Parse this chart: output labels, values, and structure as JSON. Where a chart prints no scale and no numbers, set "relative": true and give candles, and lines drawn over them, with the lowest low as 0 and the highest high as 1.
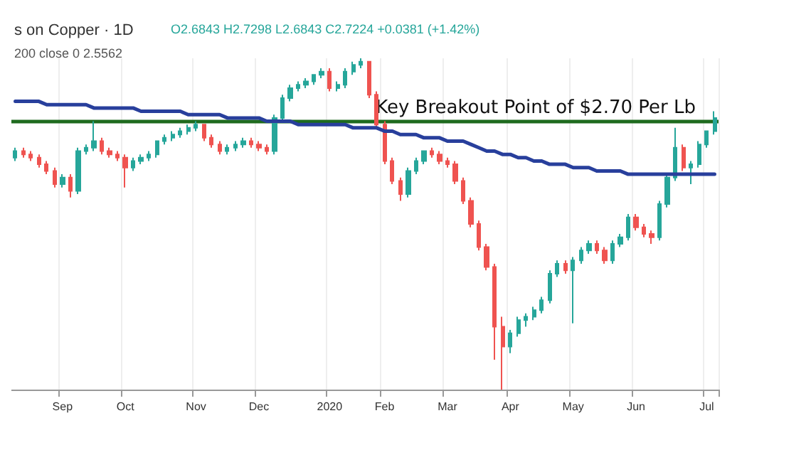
{
  "chart_data": {
    "type": "candlestick",
    "title": "s on Copper · 1D",
    "relative": true,
    "grid": "x",
    "tick_labels": "x",
    "annotations": [
      "O2.6843 H2.7298 L2.6843 C2.7224 +0.0381 (+1.42%)",
      "200 close 0 2.5562"
    ],
    "categories": [
      null,
      null,
      null,
      null,
      null,
      null,
      "Sep",
      null,
      null,
      null,
      null,
      null,
      null,
      null,
      "Oct",
      null,
      null,
      null,
      null,
      null,
      null,
      null,
      null,
      "Nov",
      null,
      null,
      null,
      null,
      null,
      null,
      null,
      "Dec",
      null,
      null,
      null,
      null,
      null,
      null,
      null,
      null,
      "2020",
      null,
      null,
      null,
      null,
      null,
      null,
      "Feb",
      null,
      null,
      null,
      null,
      null,
      null,
      null,
      "Mar",
      null,
      null,
      null,
      null,
      null,
      null,
      null,
      "Apr",
      null,
      null,
      null,
      null,
      null,
      null,
      null,
      "May",
      null,
      null,
      null,
      null,
      null,
      null,
      null,
      "Jun",
      null,
      null,
      null,
      null,
      null,
      null,
      null,
      null,
      "Jul",
      null
    ],
    "ref_lines": [
      {
        "axis": "y",
        "value": 0.81,
        "label": "Key Breakout Point of $2.70 Per Lb",
        "color": "#1e6b1e"
      }
    ],
    "series": [
      {
        "ohlc": [
          [
            0.7,
            0.73,
            0.69,
            0.72
          ],
          [
            0.72,
            0.73,
            0.7,
            0.71
          ],
          [
            0.71,
            0.72,
            0.69,
            0.7
          ],
          [
            0.7,
            0.71,
            0.67,
            0.68
          ],
          [
            0.68,
            0.69,
            0.65,
            0.66
          ],
          [
            0.66,
            0.67,
            0.61,
            0.62
          ],
          [
            0.62,
            0.65,
            0.61,
            0.64
          ],
          [
            0.64,
            0.65,
            0.58,
            0.6
          ],
          [
            0.6,
            0.73,
            0.59,
            0.72
          ],
          [
            0.72,
            0.74,
            0.71,
            0.73
          ],
          [
            0.73,
            0.81,
            0.72,
            0.75
          ],
          [
            0.75,
            0.76,
            0.71,
            0.72
          ],
          [
            0.72,
            0.73,
            0.7,
            0.71
          ],
          [
            0.71,
            0.72,
            0.69,
            0.7
          ],
          [
            0.7,
            0.71,
            0.61,
            0.67
          ],
          [
            0.67,
            0.7,
            0.66,
            0.69
          ],
          [
            0.69,
            0.71,
            0.68,
            0.7
          ],
          [
            0.7,
            0.72,
            0.69,
            0.71
          ],
          [
            0.71,
            0.75,
            0.7,
            0.75
          ],
          [
            0.75,
            0.77,
            0.74,
            0.76
          ],
          [
            0.76,
            0.78,
            0.75,
            0.77
          ],
          [
            0.77,
            0.79,
            0.76,
            0.78
          ],
          [
            0.78,
            0.8,
            0.77,
            0.79
          ],
          [
            0.79,
            0.81,
            0.78,
            0.8
          ],
          [
            0.8,
            0.8,
            0.75,
            0.76
          ],
          [
            0.76,
            0.77,
            0.73,
            0.74
          ],
          [
            0.74,
            0.75,
            0.71,
            0.72
          ],
          [
            0.72,
            0.74,
            0.71,
            0.73
          ],
          [
            0.73,
            0.75,
            0.72,
            0.74
          ],
          [
            0.74,
            0.76,
            0.73,
            0.75
          ],
          [
            0.75,
            0.76,
            0.73,
            0.74
          ],
          [
            0.74,
            0.75,
            0.72,
            0.73
          ],
          [
            0.73,
            0.74,
            0.71,
            0.72
          ],
          [
            0.72,
            0.83,
            0.71,
            0.82
          ],
          [
            0.82,
            0.89,
            0.81,
            0.88
          ],
          [
            0.88,
            0.92,
            0.87,
            0.91
          ],
          [
            0.91,
            0.93,
            0.9,
            0.92
          ],
          [
            0.92,
            0.94,
            0.91,
            0.93
          ],
          [
            0.93,
            0.95,
            0.92,
            0.95
          ],
          [
            0.95,
            0.97,
            0.94,
            0.96
          ],
          [
            0.96,
            0.97,
            0.9,
            0.91
          ],
          [
            0.91,
            0.93,
            0.9,
            0.92
          ],
          [
            0.92,
            0.97,
            0.91,
            0.96
          ],
          [
            0.96,
            0.99,
            0.95,
            0.98
          ],
          [
            0.98,
            1,
            0.97,
            0.99
          ],
          [
            0.99,
            0.99,
            0.88,
            0.89
          ],
          [
            0.89,
            0.9,
            0.79,
            0.8
          ],
          [
            0.8,
            0.81,
            0.68,
            0.69
          ],
          [
            0.69,
            0.7,
            0.62,
            0.63
          ],
          [
            0.63,
            0.64,
            0.57,
            0.59
          ],
          [
            0.59,
            0.67,
            0.58,
            0.66
          ],
          [
            0.66,
            0.7,
            0.65,
            0.69
          ],
          [
            0.69,
            0.72,
            0.68,
            0.72
          ],
          [
            0.72,
            0.73,
            0.7,
            0.71
          ],
          [
            0.71,
            0.72,
            0.68,
            0.69
          ],
          [
            0.69,
            0.7,
            0.67,
            0.68
          ],
          [
            0.68,
            0.69,
            0.62,
            0.63
          ],
          [
            0.63,
            0.64,
            0.56,
            0.57
          ],
          [
            0.57,
            0.58,
            0.49,
            0.5
          ],
          [
            0.5,
            0.51,
            0.42,
            0.43
          ],
          [
            0.43,
            0.44,
            0.36,
            0.37
          ],
          [
            0.37,
            0.38,
            0.09,
            0.19
          ],
          [
            0.19,
            0.22,
            0,
            0.13
          ],
          [
            0.13,
            0.18,
            0.11,
            0.17
          ],
          [
            0.17,
            0.22,
            0.16,
            0.21
          ],
          [
            0.21,
            0.23,
            0.19,
            0.22
          ],
          [
            0.22,
            0.25,
            0.21,
            0.24
          ],
          [
            0.24,
            0.28,
            0.23,
            0.27
          ],
          [
            0.27,
            0.36,
            0.26,
            0.35
          ],
          [
            0.35,
            0.39,
            0.34,
            0.38
          ],
          [
            0.38,
            0.39,
            0.35,
            0.36
          ],
          [
            0.36,
            0.4,
            0.2,
            0.39
          ],
          [
            0.39,
            0.43,
            0.38,
            0.42
          ],
          [
            0.42,
            0.45,
            0.41,
            0.44
          ],
          [
            0.44,
            0.45,
            0.41,
            0.42
          ],
          [
            0.42,
            0.43,
            0.38,
            0.39
          ],
          [
            0.39,
            0.45,
            0.38,
            0.44
          ],
          [
            0.44,
            0.47,
            0.43,
            0.46
          ],
          [
            0.46,
            0.53,
            0.45,
            0.52
          ],
          [
            0.52,
            0.53,
            0.48,
            0.49
          ],
          [
            0.49,
            0.5,
            0.46,
            0.47
          ],
          [
            0.47,
            0.48,
            0.44,
            0.46
          ],
          [
            0.46,
            0.57,
            0.45,
            0.56
          ],
          [
            0.56,
            0.65,
            0.55,
            0.64
          ],
          [
            0.64,
            0.79,
            0.63,
            0.73
          ],
          [
            0.73,
            0.74,
            0.66,
            0.67
          ],
          [
            0.67,
            0.69,
            0.62,
            0.68
          ],
          [
            0.68,
            0.75,
            0.67,
            0.74
          ],
          [
            0.74,
            0.78,
            0.73,
            0.78
          ],
          [
            0.78,
            0.84,
            0.77,
            0.82
          ]
        ]
      },
      {
        "type": "line",
        "color": "#283f9c",
        "values": [
          0.87,
          0.87,
          0.87,
          0.87,
          0.86,
          0.86,
          0.86,
          0.86,
          0.86,
          0.86,
          0.85,
          0.85,
          0.85,
          0.85,
          0.85,
          0.85,
          0.84,
          0.84,
          0.84,
          0.84,
          0.84,
          0.84,
          0.83,
          0.83,
          0.83,
          0.83,
          0.83,
          0.82,
          0.82,
          0.82,
          0.82,
          0.82,
          0.81,
          0.81,
          0.81,
          0.81,
          0.8,
          0.8,
          0.8,
          0.8,
          0.8,
          0.8,
          0.8,
          0.79,
          0.79,
          0.79,
          0.79,
          0.78,
          0.78,
          0.77,
          0.77,
          0.77,
          0.76,
          0.76,
          0.76,
          0.75,
          0.75,
          0.75,
          0.74,
          0.73,
          0.72,
          0.72,
          0.71,
          0.71,
          0.7,
          0.7,
          0.69,
          0.69,
          0.68,
          0.68,
          0.68,
          0.67,
          0.67,
          0.67,
          0.66,
          0.66,
          0.66,
          0.66,
          0.65,
          0.65,
          0.65,
          0.65,
          0.65,
          0.65,
          0.65,
          0.65,
          0.65,
          0.65,
          0.65,
          0.65
        ]
      }
    ]
  }
}
